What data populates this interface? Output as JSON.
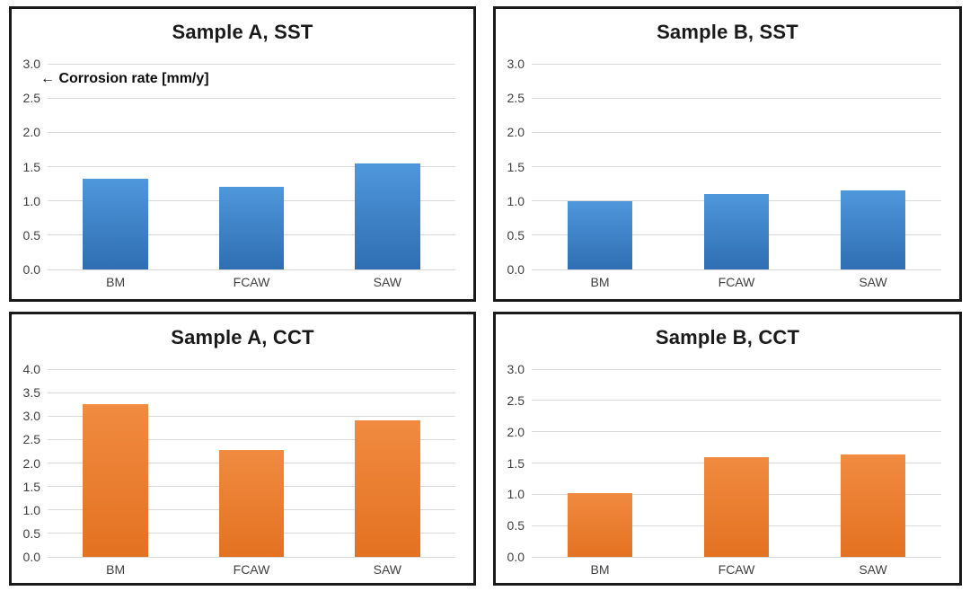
{
  "page": {
    "background": "#ffffff"
  },
  "colors": {
    "panel_border": "#1a1a1a",
    "gridline": "#d9d9d9",
    "title_text": "#1a1a1a",
    "tick_label_text": "#3f3f3f",
    "blue_bar_top": "#4f97db",
    "blue_bar_bottom": "#2f6eb2",
    "orange_bar_top": "#f08b40",
    "orange_bar_bottom": "#e47122"
  },
  "annotation": {
    "arrow_icon": "←",
    "text": "← Corrosion rate [mm/y]"
  },
  "chart_data": [
    {
      "type": "bar",
      "title": "Sample A, SST",
      "categories": [
        "BM",
        "FCAW",
        "SAW"
      ],
      "values": [
        1.32,
        1.21,
        1.55
      ],
      "ylim": [
        0,
        3
      ],
      "ytick_step": 0.5,
      "grid": true,
      "legend_position": "none",
      "bar_top": "#4f97db",
      "bar_bottom": "#2f6eb2",
      "annotation": "← Corrosion rate [mm/y]"
    },
    {
      "type": "bar",
      "title": "Sample B, SST",
      "categories": [
        "BM",
        "FCAW",
        "SAW"
      ],
      "values": [
        1.0,
        1.1,
        1.15
      ],
      "ylim": [
        0,
        3
      ],
      "ytick_step": 0.5,
      "grid": true,
      "legend_position": "none",
      "bar_top": "#4f97db",
      "bar_bottom": "#2f6eb2"
    },
    {
      "type": "bar",
      "title": "Sample A, CCT",
      "categories": [
        "BM",
        "FCAW",
        "SAW"
      ],
      "values": [
        3.25,
        2.27,
        2.9
      ],
      "ylim": [
        0,
        4
      ],
      "ytick_step": 0.5,
      "grid": true,
      "legend_position": "none",
      "bar_top": "#f08b40",
      "bar_bottom": "#e47122"
    },
    {
      "type": "bar",
      "title": "Sample B, CCT",
      "categories": [
        "BM",
        "FCAW",
        "SAW"
      ],
      "values": [
        1.02,
        1.6,
        1.63
      ],
      "ylim": [
        0,
        3
      ],
      "ytick_step": 0.5,
      "grid": true,
      "legend_position": "none",
      "bar_top": "#f08b40",
      "bar_bottom": "#e47122"
    }
  ]
}
